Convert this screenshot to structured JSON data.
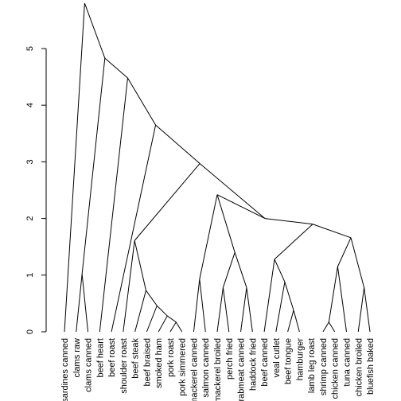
{
  "chart_data": {
    "type": "dendrogram",
    "title": "",
    "xlabel": "",
    "ylabel": "",
    "ylim": [
      0,
      5
    ],
    "yticks": [
      0,
      1,
      2,
      3,
      4,
      5
    ],
    "leaves": [
      "sardines canned",
      "clams raw",
      "clams canned",
      "beef heart",
      "beef roast",
      "shoulder roast",
      "beef steak",
      "beef braised",
      "smoked ham",
      "pork roast",
      "pork simmered",
      "mackerel canned",
      "salmon canned",
      "mackerel broiled",
      "perch fried",
      "crabmeat canned",
      "haddock fried",
      "beef canned",
      "veal cutlet",
      "beef tongue",
      "hamburger",
      "lamb leg roast",
      "shrimp canned",
      "chicken canned",
      "tuna canned",
      "chicken broiled",
      "bluefish baked"
    ],
    "merges": [
      {
        "a": "L1",
        "b": "L2",
        "height": 1.02
      },
      {
        "a": "L9",
        "b": "L10",
        "height": 0.17
      },
      {
        "a": "L8",
        "b": "N2",
        "height": 0.28
      },
      {
        "a": "L7",
        "b": "N3",
        "height": 0.46
      },
      {
        "a": "L6",
        "b": "N4",
        "height": 0.73
      },
      {
        "a": "L5",
        "b": "N5",
        "height": 1.61
      },
      {
        "a": "L11",
        "b": "L12",
        "height": 0.93
      },
      {
        "a": "L13",
        "b": "L14",
        "height": 0.78
      },
      {
        "a": "L15",
        "b": "L16",
        "height": 0.78
      },
      {
        "a": "N8",
        "b": "N9",
        "height": 1.4
      },
      {
        "a": "N7",
        "b": "N10",
        "height": 2.42
      },
      {
        "a": "L19",
        "b": "L20",
        "height": 0.38
      },
      {
        "a": "L18",
        "b": "N12",
        "height": 0.88
      },
      {
        "a": "L17",
        "b": "N13",
        "height": 1.28
      },
      {
        "a": "L22",
        "b": "L23",
        "height": 0.17
      },
      {
        "a": "N15",
        "b": "L24",
        "height": 1.15
      },
      {
        "a": "L25",
        "b": "L26",
        "height": 0.78
      },
      {
        "a": "N16",
        "b": "N17",
        "height": 1.66
      },
      {
        "a": "N14",
        "b": "N18",
        "height": 1.9
      },
      {
        "a": "N11",
        "b": "N19",
        "height": 2.0
      },
      {
        "a": "N6",
        "b": "N20",
        "height": 2.97
      },
      {
        "a": "L4",
        "b": "N21",
        "height": 3.65
      },
      {
        "a": "L3",
        "b": "N22",
        "height": 4.48
      },
      {
        "a": "N1",
        "b": "N23",
        "height": 4.83
      },
      {
        "a": "L0",
        "b": "N24",
        "height": 5.8
      }
    ]
  }
}
